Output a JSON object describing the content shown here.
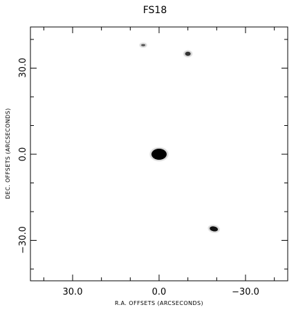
{
  "plot": {
    "title": "FS18",
    "xlabel": "R.A. OFFSETS (ARCSECONDS)",
    "ylabel": "DEC. OFFSETS (ARCSECONDS)",
    "x_ticks": [
      "30.0",
      "0.0",
      "−30.0"
    ],
    "y_ticks": [
      "30.0",
      "0.0",
      "−30.0"
    ]
  },
  "sources": [
    {
      "name": "central-star",
      "ra_offset": 0.0,
      "dec_offset": 0.0
    },
    {
      "name": "upper-star",
      "ra_offset": -10.0,
      "dec_offset": 35.0
    },
    {
      "name": "lower-star",
      "ra_offset": -19.0,
      "dec_offset": -26.0
    },
    {
      "name": "faint-star",
      "ra_offset": 5.5,
      "dec_offset": 38.0
    }
  ],
  "colors": {
    "background": "#ffffff",
    "noise": "#d9d9d9",
    "source": "#000000"
  }
}
